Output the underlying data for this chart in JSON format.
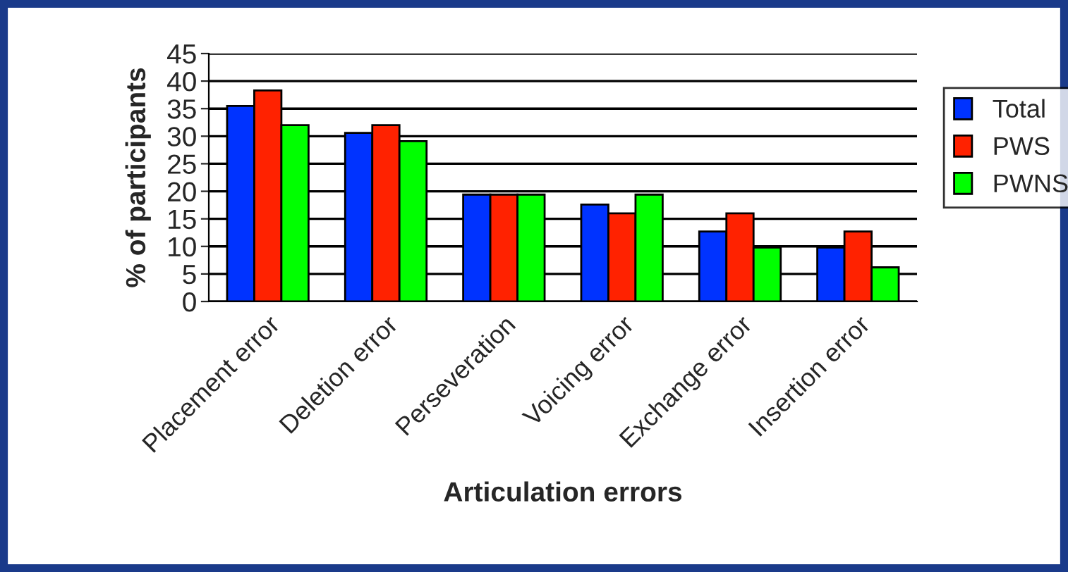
{
  "chart_data": {
    "type": "bar",
    "xlabel": "Articulation errors",
    "ylabel": "% of participants",
    "categories": [
      "Placement error",
      "Deletion error",
      "Perseveration",
      "Voicing error",
      "Exchange error",
      "Insertion error"
    ],
    "series": [
      {
        "name": "Total",
        "color": "#0033ff",
        "values": [
          35.5,
          30.6,
          19.4,
          17.6,
          12.7,
          9.8
        ]
      },
      {
        "name": "PWS",
        "color": "#ff2200",
        "values": [
          38.3,
          32.0,
          19.4,
          16.0,
          16.0,
          12.7
        ]
      },
      {
        "name": "PWNS",
        "color": "#00ff00",
        "values": [
          32.0,
          29.1,
          19.4,
          19.4,
          9.8,
          6.2
        ]
      }
    ],
    "ylim": [
      0,
      45
    ],
    "yticks": [
      0,
      5,
      10,
      15,
      20,
      25,
      30,
      35,
      40,
      45
    ],
    "grid": "y",
    "legend": "right"
  }
}
